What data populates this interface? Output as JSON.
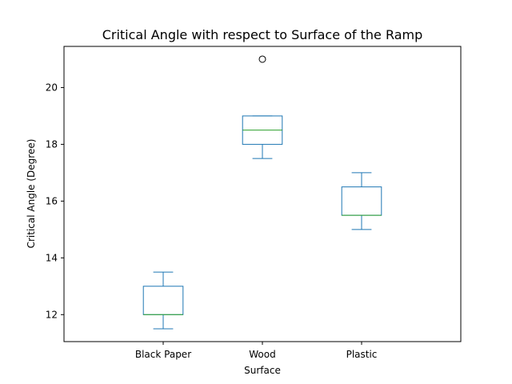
{
  "chart_data": {
    "type": "boxplot",
    "title": "Critical Angle with respect to Surface of the Ramp",
    "xlabel": "Surface",
    "ylabel": "Critical Angle (Degree)",
    "ylim": [
      11.05,
      21.45
    ],
    "yticks": [
      12,
      14,
      16,
      18,
      20
    ],
    "grid": false,
    "categories": [
      "Black Paper",
      "Wood",
      "Plastic"
    ],
    "boxes": [
      {
        "category": "Black Paper",
        "whisker_low": 11.5,
        "q1": 12.0,
        "median": 12.0,
        "q3": 13.0,
        "whisker_high": 13.5,
        "outliers": []
      },
      {
        "category": "Wood",
        "whisker_low": 17.5,
        "q1": 18.0,
        "median": 18.5,
        "q3": 19.0,
        "whisker_high": 19.0,
        "outliers": [
          21.0
        ]
      },
      {
        "category": "Plastic",
        "whisker_low": 15.0,
        "q1": 15.5,
        "median": 15.5,
        "q3": 16.5,
        "whisker_high": 17.0,
        "outliers": []
      }
    ],
    "colors": {
      "box": "#1f77b4",
      "median": "#2ca02c",
      "axis": "#000000"
    }
  }
}
